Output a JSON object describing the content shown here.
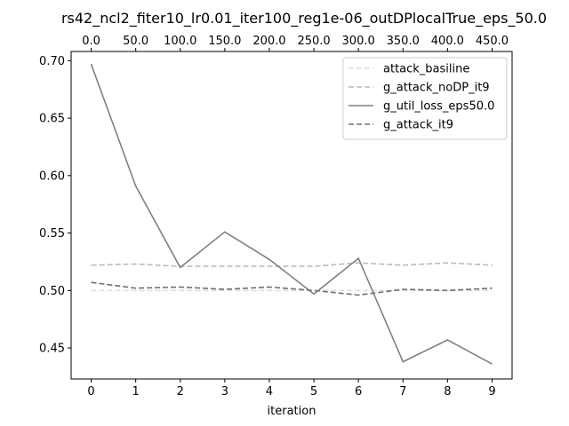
{
  "chart_data": {
    "type": "line",
    "title": "rs42_ncl2_fiter10_lr0.01_iter100_reg1e-06_outDPlocalTrue_eps_50.0",
    "xlabel": "iteration",
    "ylabel": "",
    "x": [
      0,
      1,
      2,
      3,
      4,
      5,
      6,
      7,
      8,
      9
    ],
    "x_ticks": [
      "0",
      "1",
      "2",
      "3",
      "4",
      "5",
      "6",
      "7",
      "8",
      "9"
    ],
    "xlim": [
      -0.45,
      9.45
    ],
    "top_x_ticks": [
      "0.0",
      "50.0",
      "100.0",
      "150.0",
      "200.0",
      "250.0",
      "300.0",
      "350.0",
      "400.0",
      "450.0"
    ],
    "y_ticks": [
      "0.45",
      "0.50",
      "0.55",
      "0.60",
      "0.65",
      "0.70"
    ],
    "y_tick_values": [
      0.45,
      0.5,
      0.55,
      0.6,
      0.65,
      0.7
    ],
    "ylim": [
      0.423,
      0.708
    ],
    "grid": false,
    "legend_position": "upper right",
    "series": [
      {
        "name": "attack_basiline",
        "values": [
          0.5,
          0.5,
          0.5,
          0.5,
          0.5,
          0.5,
          0.5,
          0.5,
          0.5,
          0.5
        ],
        "color": "#dddddd",
        "dash": "dashed"
      },
      {
        "name": "g_attack_noDP_it9",
        "values": [
          0.522,
          0.523,
          0.521,
          0.521,
          0.521,
          0.521,
          0.524,
          0.522,
          0.524,
          0.522
        ],
        "color": "#bbbbbb",
        "dash": "dashed"
      },
      {
        "name": "g_util_loss_eps50.0",
        "values": [
          0.697,
          0.591,
          0.52,
          0.551,
          0.527,
          0.497,
          0.528,
          0.438,
          0.457,
          0.436
        ],
        "color": "#808080",
        "dash": "solid"
      },
      {
        "name": "g_attack_it9",
        "values": [
          0.507,
          0.502,
          0.503,
          0.501,
          0.503,
          0.5,
          0.496,
          0.501,
          0.5,
          0.502
        ],
        "color": "#707070",
        "dash": "dashed"
      }
    ]
  }
}
